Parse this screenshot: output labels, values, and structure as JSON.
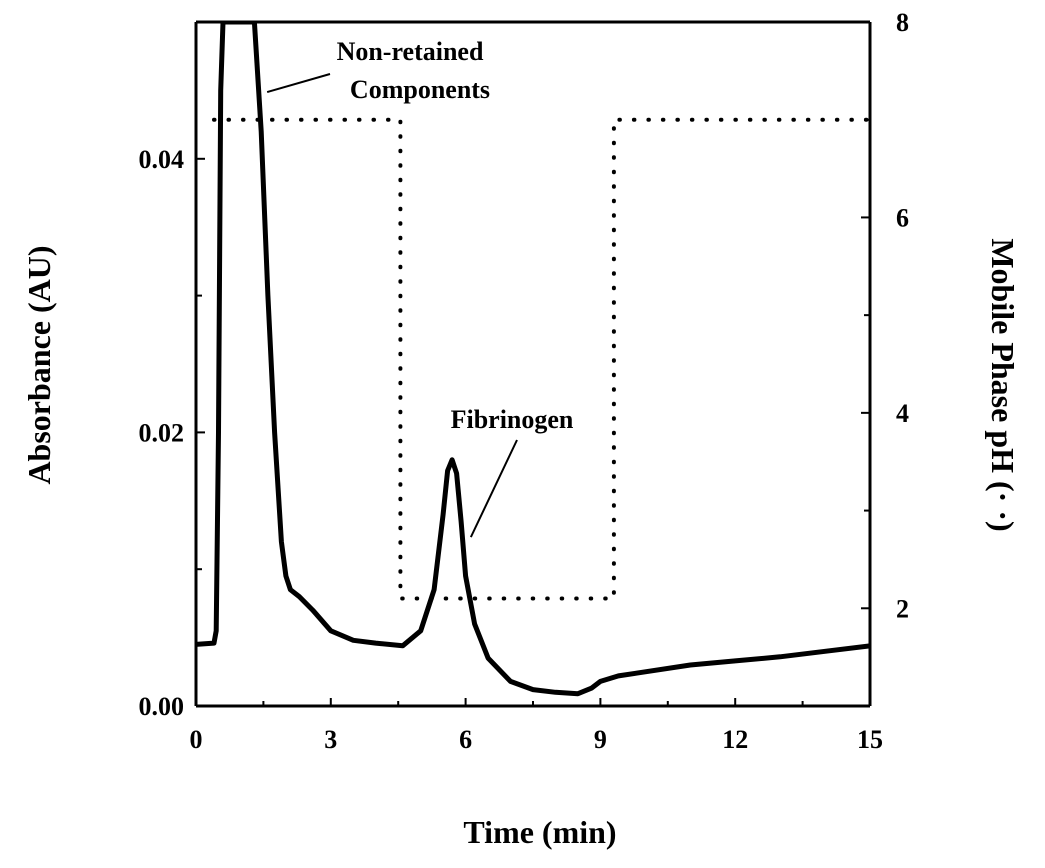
{
  "chart_data": {
    "type": "line",
    "xlabel": "Time (min)",
    "ylabel": "Absorbance (AU)",
    "y2label": "Mobile Phase pH (· ·)",
    "xlim": [
      0,
      15
    ],
    "ylim": [
      0,
      0.05
    ],
    "y2lim": [
      1,
      8
    ],
    "x_ticks": [
      "0",
      "3",
      "6",
      "9",
      "12",
      "15"
    ],
    "y_ticks": [
      "0.00",
      "0.02",
      "0.04"
    ],
    "y2_ticks": [
      "2",
      "4",
      "6",
      "8"
    ],
    "series": [
      {
        "role": "absorbance",
        "axis": "left",
        "style": "solid",
        "x": [
          0,
          0.4,
          0.45,
          0.5,
          0.55,
          0.6,
          1.3,
          1.45,
          1.6,
          1.75,
          1.9,
          2.0,
          2.1,
          2.3,
          2.6,
          3.0,
          3.5,
          4.0,
          4.6,
          5.0,
          5.3,
          5.5,
          5.6,
          5.7,
          5.8,
          5.9,
          6.0,
          6.2,
          6.5,
          7.0,
          7.5,
          8.0,
          8.5,
          8.8,
          9.0,
          9.4,
          10,
          11,
          12,
          13,
          14,
          15
        ],
        "y": [
          0.0045,
          0.0046,
          0.0055,
          0.02,
          0.045,
          0.05,
          0.05,
          0.042,
          0.03,
          0.02,
          0.012,
          0.0095,
          0.0085,
          0.008,
          0.007,
          0.0055,
          0.0048,
          0.0046,
          0.0044,
          0.0055,
          0.0085,
          0.014,
          0.0172,
          0.018,
          0.017,
          0.0135,
          0.0095,
          0.006,
          0.0035,
          0.0018,
          0.0012,
          0.001,
          0.0009,
          0.0013,
          0.0018,
          0.0022,
          0.0025,
          0.003,
          0.0033,
          0.0036,
          0.004,
          0.0044
        ]
      },
      {
        "role": "pH",
        "axis": "right",
        "style": "dotted",
        "x": [
          0.4,
          4.55,
          4.55,
          9.3,
          9.3,
          15
        ],
        "y": [
          7.0,
          7.0,
          2.1,
          2.1,
          7.0,
          7.0
        ]
      }
    ],
    "annotations": [
      {
        "lines": [
          "Non-retained",
          "Components"
        ],
        "x": 1.45,
        "y": 0.044
      },
      {
        "lines": [
          "Fibrinogen"
        ],
        "x": 5.85,
        "y": 0.016
      }
    ],
    "grid": false,
    "legend": "none"
  }
}
